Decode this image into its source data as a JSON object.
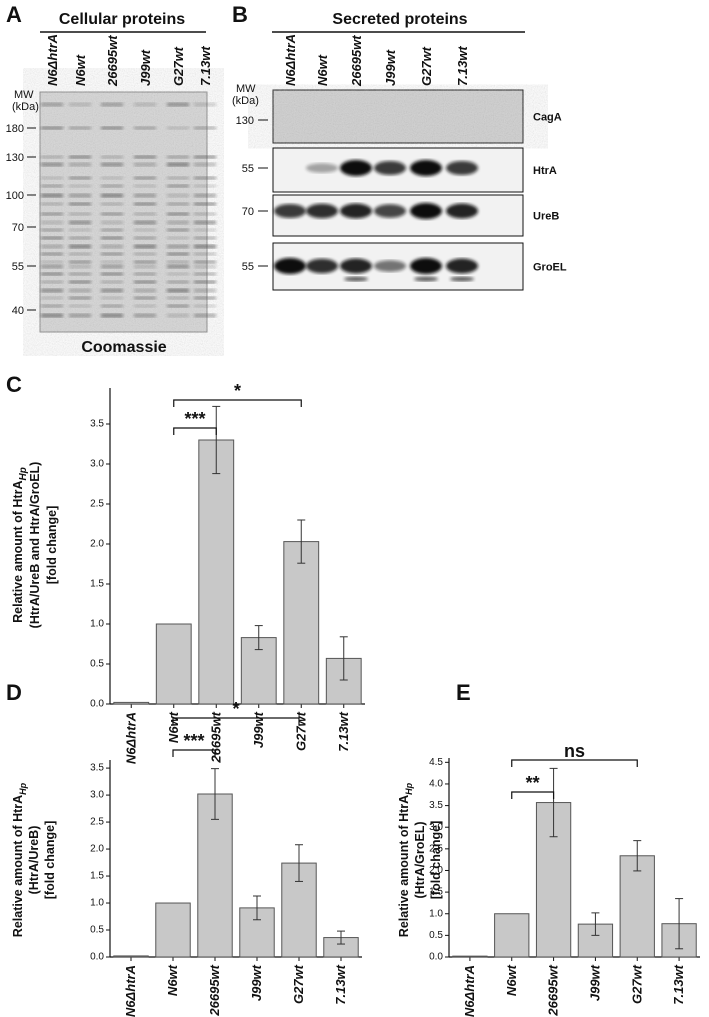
{
  "panel_a": {
    "label": "A",
    "title": "Cellular proteins",
    "lanes": [
      "N6ΔhtrA",
      "N6wt",
      "26695wt",
      "J99wt",
      "G27wt",
      "7.13wt"
    ],
    "mw_label": [
      "MW",
      "(kDa)"
    ],
    "mw_markers": [
      180,
      130,
      100,
      70,
      55,
      40
    ],
    "stain": "Coomassie"
  },
  "panel_b": {
    "label": "B",
    "title": "Secreted proteins",
    "lanes": [
      "N6ΔhtrA",
      "N6wt",
      "26695wt",
      "J99wt",
      "G27wt",
      "7.13wt"
    ],
    "mw_label": [
      "MW",
      "(kDa)"
    ],
    "blots": [
      "CagA",
      "HtrA",
      "UreB",
      "GroEL"
    ],
    "mw_markers": [
      130,
      55,
      70,
      55
    ]
  },
  "chart_data": [
    {
      "type": "bar",
      "panel": "C",
      "ylabel": [
        "Relative amount of HtrA",
        "(HtrA/UreB and HtrA/GroEL)",
        "[fold change]"
      ],
      "ylabel_sub": "Hp",
      "categories": [
        "N6ΔhtrA",
        "N6wt",
        "26695wt",
        "J99wt",
        "G27wt",
        "7.13wt"
      ],
      "values": [
        0.02,
        1.0,
        3.3,
        0.83,
        2.03,
        0.57
      ],
      "errors": [
        0,
        0,
        0.42,
        0.15,
        0.27,
        0.27
      ],
      "color": "#c8c8c8",
      "ylim": [
        0,
        3.95
      ],
      "yticks": [
        {
          "value": 0,
          "label": "0.0"
        },
        0.5,
        {
          "value": 1,
          "label": "1.0"
        },
        1.5,
        {
          "value": 2,
          "label": "2.0"
        },
        2.5,
        {
          "value": 3,
          "label": "3.0"
        },
        3.5
      ],
      "annotations": [
        {
          "text": "***",
          "between": [
            "N6wt",
            "26695wt"
          ]
        },
        {
          "text": "*",
          "between": [
            "N6wt",
            "G27wt"
          ]
        }
      ]
    },
    {
      "type": "bar",
      "panel": "D",
      "ylabel": [
        "Relative amount of HtrA",
        "(HtrA/UreB)",
        "[fold change]"
      ],
      "ylabel_sub": "Hp",
      "categories": [
        "N6ΔhtrA",
        "N6wt",
        "26695wt",
        "J99wt",
        "G27wt",
        "7.13wt"
      ],
      "values": [
        0.02,
        1.0,
        3.02,
        0.91,
        1.74,
        0.36
      ],
      "errors": [
        0,
        0,
        0.47,
        0.22,
        0.34,
        0.12
      ],
      "color": "#c8c8c8",
      "ylim": [
        0,
        3.65
      ],
      "yticks": [
        {
          "value": 0,
          "label": "0.0"
        },
        0.5,
        {
          "value": 1,
          "label": "1.0"
        },
        1.5,
        {
          "value": 2,
          "label": "2.0"
        },
        2.5,
        {
          "value": 3,
          "label": "3.0"
        },
        3.5
      ],
      "annotations": [
        {
          "text": "***",
          "between": [
            "N6wt",
            "26695wt"
          ]
        },
        {
          "text": "*",
          "between": [
            "N6wt",
            "G27wt"
          ]
        }
      ]
    },
    {
      "type": "bar",
      "panel": "E",
      "ylabel": [
        "Relative amount of HtrA",
        "(HtrA/GroEL)",
        "[fold change]"
      ],
      "ylabel_sub": "Hp",
      "categories": [
        "N6ΔhtrA",
        "N6wt",
        "26695wt",
        "J99wt",
        "G27wt",
        "7.13wt"
      ],
      "values": [
        0.02,
        1.0,
        3.57,
        0.76,
        2.34,
        0.77
      ],
      "errors": [
        0,
        0,
        0.79,
        0.26,
        0.35,
        0.58
      ],
      "color": "#c8c8c8",
      "ylim": [
        0,
        4.6
      ],
      "yticks": [
        {
          "value": 0,
          "label": "0.0"
        },
        0.5,
        {
          "value": 1,
          "label": "1.0"
        },
        1.5,
        {
          "value": 2,
          "label": "2.0"
        },
        2.5,
        {
          "value": 3,
          "label": "3.0"
        },
        3.5,
        {
          "value": 4,
          "label": "4.0"
        },
        4.5
      ],
      "annotations": [
        {
          "text": "**",
          "between": [
            "N6wt",
            "26695wt"
          ]
        },
        {
          "text": "ns",
          "between": [
            "N6wt",
            "G27wt"
          ]
        }
      ]
    }
  ]
}
